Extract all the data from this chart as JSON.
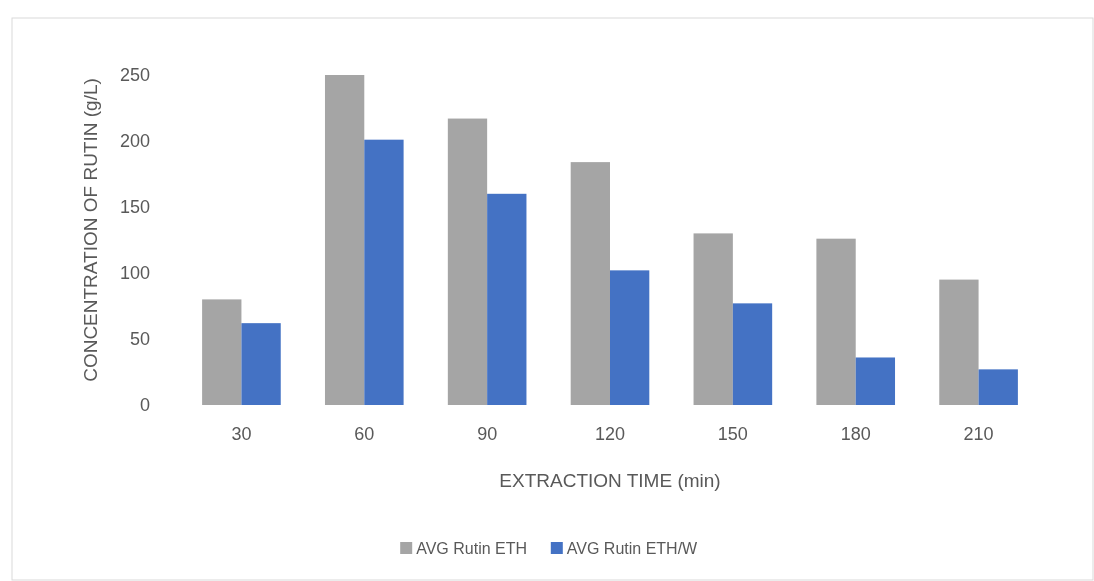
{
  "chart_data": {
    "type": "bar",
    "xlabel": "EXTRACTION TIME (min)",
    "ylabel": "CONCENTRATION OF RUTIN (g/L)",
    "categories": [
      "30",
      "60",
      "90",
      "120",
      "150",
      "180",
      "210"
    ],
    "series": [
      {
        "name": "AVG Rutin ETH",
        "color": "#a5a5a5",
        "values": [
          80,
          250,
          217,
          184,
          130,
          126,
          95
        ]
      },
      {
        "name": "AVG Rutin ETH/W",
        "color": "#4472c4",
        "values": [
          62,
          201,
          160,
          102,
          77,
          36,
          27
        ]
      }
    ],
    "ylim": [
      0,
      250
    ],
    "yticks": [
      0,
      50,
      100,
      150,
      200,
      250
    ],
    "grid": false,
    "legend": "bottom"
  }
}
